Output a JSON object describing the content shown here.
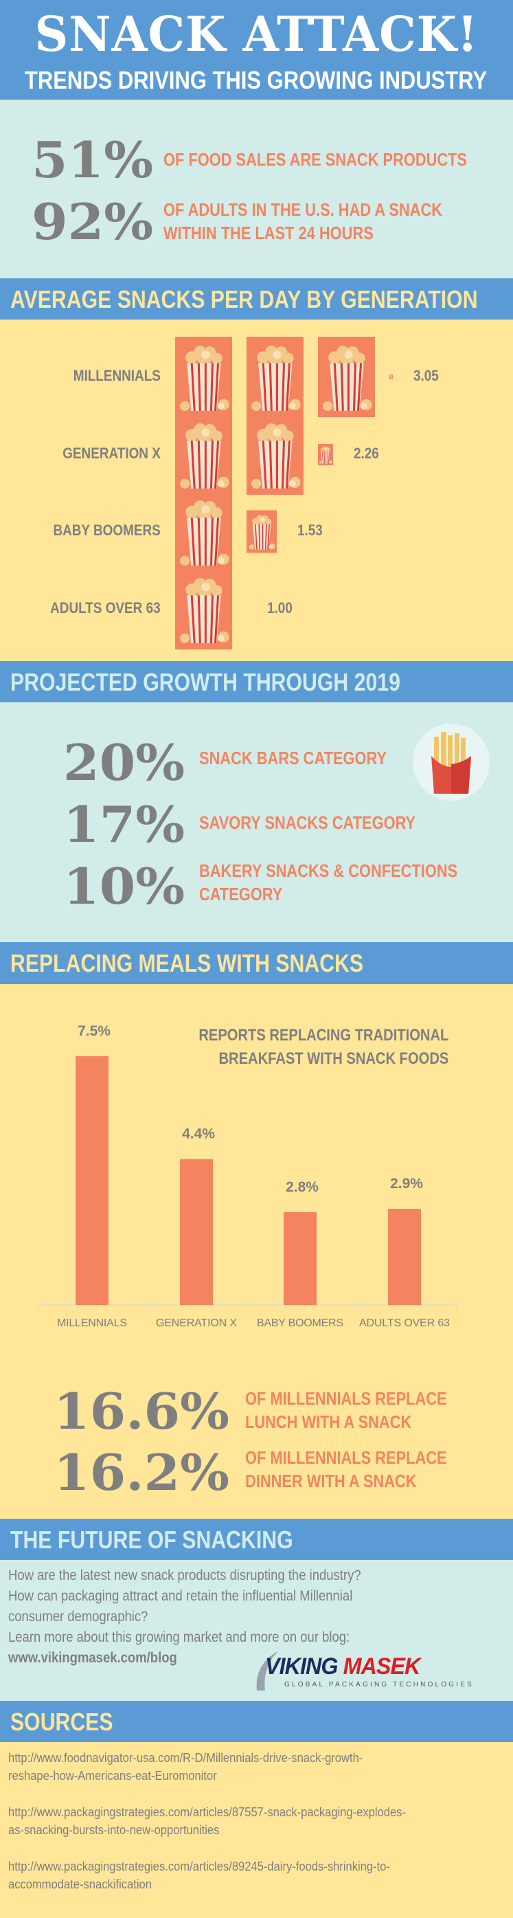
{
  "header": {
    "title": "SNACK ATTACK!",
    "subtitle": "TRENDS DRIVING THIS GROWING INDUSTRY"
  },
  "stats": [
    {
      "value": "51%",
      "lines": [
        "OF FOOD SALES ARE SNACK PRODUCTS"
      ]
    },
    {
      "value": "92%",
      "lines": [
        "OF ADULTS IN THE U.S. HAD A SNACK",
        "WITHIN THE LAST 24 HOURS"
      ]
    }
  ],
  "projected": {
    "title": "PROJECTED GROWTH THROUGH 2019",
    "items": [
      {
        "value": "20%",
        "lines": [
          "SNACK BARS CATEGORY"
        ]
      },
      {
        "value": "17%",
        "lines": [
          "SAVORY SNACKS CATEGORY"
        ]
      },
      {
        "value": "10%",
        "lines": [
          "BAKERY SNACKS & CONFECTIONS",
          "CATEGORY"
        ]
      }
    ],
    "icon": "french-fries-icon"
  },
  "replacing": {
    "title": "REPLACING MEALS WITH SNACKS",
    "stats": [
      {
        "value": "16.6%",
        "lines": [
          "OF MILLENNIALS REPLACE",
          "LUNCH WITH A SNACK"
        ]
      },
      {
        "value": "16.2%",
        "lines": [
          "OF MILLENNIALS REPLACE",
          "DINNER WITH A SNACK"
        ]
      }
    ]
  },
  "future": {
    "title": "THE FUTURE OF SNACKING",
    "lines": [
      "How are the latest new snack products disrupting the industry?",
      "How can packaging attract and retain the influential Millennial",
      "consumer demographic?",
      "Learn more about this growing market and more on our blog:"
    ],
    "link": "www.vikingmasek.com/blog",
    "logo": {
      "name": "VIKING MASEK",
      "tagline": "GLOBAL PACKAGING TECHNOLOGIES"
    }
  },
  "sources": {
    "title": "SOURCES",
    "items": [
      [
        "http://www.foodnavigator-usa.com/R-D/Millennials-drive-snack-growth-",
        "reshape-how-Americans-eat-Euromonitor"
      ],
      [
        "http://www.packagingstrategies.com/articles/87557-snack-packaging-explodes-",
        "as-snacking-bursts-into-new-opportunities"
      ],
      [
        "http://www.packagingstrategies.com/articles/89245-dairy-foods-shrinking-to-",
        "accommodate-snackification"
      ]
    ]
  },
  "colors": {
    "blue": "#5b9bd5",
    "teal": "#d2ecea",
    "yellow": "#ffe699",
    "orange": "#f4845f",
    "gray": "#7f7f7f"
  },
  "chart_data": [
    {
      "type": "bar",
      "orientation": "horizontal",
      "mark": "popcorn-icon pictograph",
      "title": "AVERAGE SNACKS PER DAY BY GENERATION",
      "categories": [
        "MILLENNIALS",
        "GENERATION X",
        "BABY BOOMERS",
        "ADULTS OVER 63"
      ],
      "values": [
        3.05,
        2.26,
        1.53,
        1.0
      ],
      "data_labels": [
        "3.05",
        "2.26",
        "1.53",
        "1.00"
      ]
    },
    {
      "type": "bar",
      "orientation": "vertical",
      "title": "REPORTS REPLACING TRADITIONAL BREAKFAST WITH SNACK FOODS",
      "title_lines": [
        "REPORTS REPLACING TRADITIONAL",
        "BREAKFAST WITH SNACK FOODS"
      ],
      "categories": [
        "MILLENNIALS",
        "GENERATION X",
        "BABY BOOMERS",
        "ADULTS OVER 63"
      ],
      "values": [
        7.5,
        4.4,
        2.8,
        2.9
      ],
      "data_labels": [
        "7.5%",
        "4.4%",
        "2.8%",
        "2.9%"
      ],
      "ylim": [
        0,
        7.5
      ],
      "grid": false
    }
  ]
}
